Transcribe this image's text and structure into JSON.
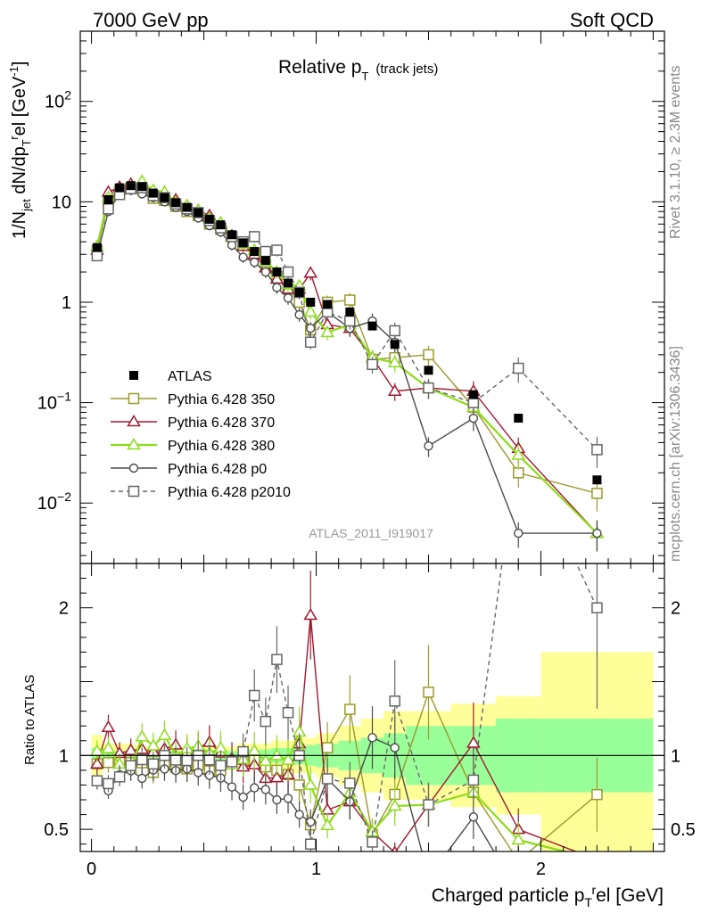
{
  "header": {
    "left": "7000 GeV pp",
    "right": "Soft QCD"
  },
  "side_labels": {
    "rivet": "Rivet 3.1.10, ≥ 2.3M events",
    "mcplots": "mcplots.cern.ch [arXiv:1306.3436]"
  },
  "analysis_id": "ATLAS_2011_I919017",
  "chart_data": [
    {
      "type": "line",
      "panel": "main",
      "title": "Relative p",
      "title_sub": "T",
      "title_suffix": "(track jets)",
      "ylabel": "1/N_jet dN/dp_T^r el [GeV^-1]",
      "yscale": "log",
      "ylim": [
        0.0025,
        500
      ],
      "xlim": [
        -0.05,
        2.55
      ],
      "y_tick_labels": [
        "10^-2",
        "10^-1",
        "1",
        "10",
        "10^2"
      ],
      "legend_placement": "lower-left",
      "series": [
        {
          "name": "ATLAS",
          "style": "data",
          "color": "#000000",
          "x": [
            0.025,
            0.075,
            0.125,
            0.175,
            0.225,
            0.275,
            0.325,
            0.375,
            0.425,
            0.475,
            0.525,
            0.575,
            0.625,
            0.675,
            0.725,
            0.775,
            0.825,
            0.875,
            0.925,
            0.975,
            1.05,
            1.15,
            1.25,
            1.35,
            1.5,
            1.7,
            1.9,
            2.25
          ],
          "values": [
            3.5,
            10.5,
            13.8,
            14.5,
            14.2,
            12.2,
            11.0,
            9.8,
            8.8,
            7.8,
            6.7,
            5.9,
            4.7,
            3.9,
            3.2,
            2.6,
            2.0,
            1.55,
            1.25,
            1.0,
            0.95,
            0.8,
            0.58,
            0.38,
            0.21,
            0.12,
            0.07,
            0.017
          ]
        },
        {
          "name": "Pythia 6.428 350",
          "style": "square-open",
          "color": "#9a9a2a",
          "x": [
            0.025,
            0.075,
            0.125,
            0.175,
            0.225,
            0.275,
            0.325,
            0.375,
            0.425,
            0.475,
            0.525,
            0.575,
            0.625,
            0.675,
            0.725,
            0.775,
            0.825,
            0.875,
            0.925,
            0.975,
            1.05,
            1.15,
            1.25,
            1.35,
            1.5,
            1.7,
            1.9,
            2.25
          ],
          "values": [
            3.3,
            10.0,
            13.2,
            13.8,
            13.5,
            10.8,
            10.3,
            9.0,
            8.0,
            7.3,
            6.0,
            5.3,
            4.5,
            3.8,
            3.1,
            2.4,
            1.8,
            1.35,
            1.0,
            0.53,
            1.0,
            1.05,
            0.27,
            0.28,
            0.3,
            0.09,
            0.02,
            0.0125
          ]
        },
        {
          "name": "Pythia 6.428 370",
          "style": "triangle-open",
          "color": "#a01830",
          "x": [
            0.025,
            0.075,
            0.125,
            0.175,
            0.225,
            0.275,
            0.325,
            0.375,
            0.425,
            0.475,
            0.525,
            0.575,
            0.625,
            0.675,
            0.725,
            0.775,
            0.825,
            0.875,
            0.925,
            0.975,
            1.05,
            1.15,
            1.25,
            1.35,
            1.5,
            1.7,
            1.9,
            2.25
          ],
          "values": [
            3.3,
            12.5,
            14.0,
            15.0,
            14.8,
            12.5,
            11.5,
            10.5,
            9.0,
            8.2,
            7.3,
            6.0,
            4.6,
            3.6,
            3.0,
            2.2,
            1.7,
            1.35,
            1.35,
            1.95,
            0.6,
            0.55,
            0.28,
            0.13,
            0.14,
            0.13,
            0.035,
            0.005
          ]
        },
        {
          "name": "Pythia 6.428 380",
          "style": "triangle-open",
          "color": "#8cdc18",
          "x": [
            0.025,
            0.075,
            0.125,
            0.175,
            0.225,
            0.275,
            0.325,
            0.375,
            0.425,
            0.475,
            0.525,
            0.575,
            0.625,
            0.675,
            0.725,
            0.775,
            0.825,
            0.875,
            0.925,
            0.975,
            1.05,
            1.15,
            1.25,
            1.35,
            1.5,
            1.7,
            1.9,
            2.25
          ],
          "values": [
            3.6,
            11.0,
            13.0,
            13.2,
            16.0,
            13.0,
            12.5,
            9.8,
            9.2,
            8.3,
            6.8,
            6.2,
            4.4,
            3.8,
            3.3,
            2.5,
            2.0,
            1.5,
            1.45,
            0.8,
            0.5,
            0.6,
            0.28,
            0.25,
            0.14,
            0.09,
            0.03,
            0.005
          ]
        },
        {
          "name": "Pythia 6.428 p0",
          "style": "circle-open",
          "color": "#4a4a4a",
          "x": [
            0.025,
            0.075,
            0.125,
            0.175,
            0.225,
            0.275,
            0.325,
            0.375,
            0.425,
            0.475,
            0.525,
            0.575,
            0.625,
            0.675,
            0.725,
            0.775,
            0.825,
            0.875,
            0.925,
            0.975,
            1.05,
            1.15,
            1.25,
            1.35,
            1.5,
            1.7,
            1.9,
            2.25
          ],
          "values": [
            2.9,
            8.0,
            12.0,
            13.0,
            12.0,
            11.0,
            10.0,
            8.8,
            8.0,
            6.9,
            5.8,
            5.0,
            3.7,
            2.8,
            2.5,
            2.0,
            1.4,
            1.1,
            0.75,
            0.55,
            0.8,
            0.55,
            0.65,
            0.4,
            0.037,
            0.07,
            0.005,
            0.005
          ]
        },
        {
          "name": "Pythia 6.428 p2010",
          "style": "square-open-dashed",
          "color": "#666666",
          "x": [
            0.025,
            0.075,
            0.125,
            0.175,
            0.225,
            0.275,
            0.325,
            0.375,
            0.425,
            0.475,
            0.525,
            0.575,
            0.625,
            0.675,
            0.725,
            0.775,
            0.825,
            0.875,
            0.925,
            0.975,
            1.05,
            1.15,
            1.25,
            1.35,
            1.5,
            1.7,
            1.9,
            2.25
          ],
          "values": [
            2.9,
            8.5,
            11.8,
            13.5,
            13.8,
            11.5,
            11.0,
            9.5,
            8.5,
            7.8,
            6.5,
            5.5,
            4.5,
            4.0,
            4.5,
            3.2,
            3.3,
            2.0,
            1.25,
            0.4,
            0.8,
            0.65,
            0.24,
            0.52,
            0.14,
            0.1,
            0.22,
            0.034
          ]
        }
      ]
    },
    {
      "type": "line",
      "panel": "ratio",
      "ylabel": "Ratio to ATLAS",
      "xlabel": "Charged particle p_T^r el [GeV]",
      "ylim": [
        0.35,
        2.3
      ],
      "xlim": [
        -0.05,
        2.55
      ],
      "x_tick_labels": [
        "0",
        "1",
        "2"
      ],
      "y_tick_labels": [
        "0.5",
        "1",
        "2"
      ],
      "bands": {
        "x_edges": [
          0.0,
          0.05,
          0.1,
          0.15,
          0.2,
          0.25,
          0.3,
          0.35,
          0.4,
          0.45,
          0.5,
          0.55,
          0.6,
          0.65,
          0.7,
          0.75,
          0.8,
          0.85,
          0.9,
          0.95,
          1.0,
          1.1,
          1.2,
          1.3,
          1.4,
          1.6,
          1.8,
          2.0,
          2.5
        ],
        "stat_rel": [
          0.05,
          0.03,
          0.03,
          0.03,
          0.03,
          0.03,
          0.03,
          0.03,
          0.03,
          0.03,
          0.03,
          0.03,
          0.03,
          0.03,
          0.04,
          0.04,
          0.05,
          0.05,
          0.06,
          0.07,
          0.08,
          0.1,
          0.12,
          0.15,
          0.2,
          0.2,
          0.25,
          0.25
        ],
        "total_rel": [
          0.14,
          0.08,
          0.08,
          0.08,
          0.06,
          0.06,
          0.06,
          0.06,
          0.06,
          0.06,
          0.06,
          0.06,
          0.06,
          0.08,
          0.08,
          0.08,
          0.1,
          0.1,
          0.12,
          0.12,
          0.15,
          0.2,
          0.25,
          0.3,
          0.3,
          0.35,
          0.4,
          0.7
        ],
        "stat_color": "#99ff99",
        "total_color": "#ffff99"
      }
    }
  ]
}
